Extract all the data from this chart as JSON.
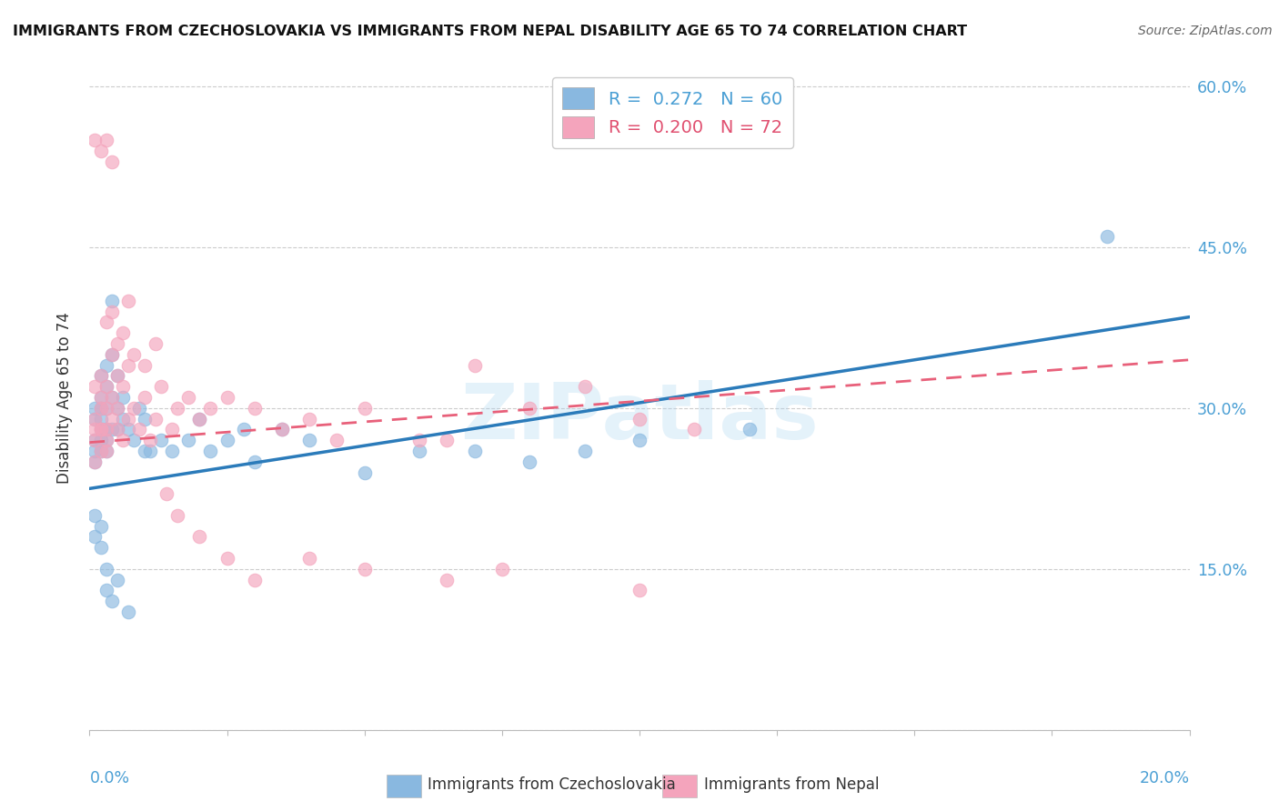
{
  "title": "IMMIGRANTS FROM CZECHOSLOVAKIA VS IMMIGRANTS FROM NEPAL DISABILITY AGE 65 TO 74 CORRELATION CHART",
  "source": "Source: ZipAtlas.com",
  "ylabel": "Disability Age 65 to 74",
  "legend_label1": "Immigrants from Czechoslovakia",
  "legend_label2": "Immigrants from Nepal",
  "R1": 0.272,
  "N1": 60,
  "R2": 0.2,
  "N2": 72,
  "xmin": 0.0,
  "xmax": 0.2,
  "ymin": 0.0,
  "ymax": 0.62,
  "yticks": [
    0.0,
    0.15,
    0.3,
    0.45,
    0.6
  ],
  "ytick_labels": [
    "",
    "15.0%",
    "30.0%",
    "45.0%",
    "60.0%"
  ],
  "color_blue": "#89b8e0",
  "color_pink": "#f4a4bc",
  "color_blue_line": "#2b7bba",
  "color_pink_line": "#e8607a",
  "background_color": "#ffffff",
  "watermark": "ZIPatlas",
  "scatter1_x": [
    0.001,
    0.001,
    0.001,
    0.001,
    0.001,
    0.002,
    0.002,
    0.002,
    0.002,
    0.002,
    0.002,
    0.002,
    0.003,
    0.003,
    0.003,
    0.003,
    0.003,
    0.003,
    0.004,
    0.004,
    0.004,
    0.004,
    0.005,
    0.005,
    0.005,
    0.006,
    0.006,
    0.007,
    0.008,
    0.009,
    0.01,
    0.01,
    0.011,
    0.013,
    0.015,
    0.018,
    0.02,
    0.022,
    0.025,
    0.028,
    0.03,
    0.035,
    0.04,
    0.05,
    0.06,
    0.07,
    0.08,
    0.09,
    0.1,
    0.12,
    0.001,
    0.001,
    0.002,
    0.002,
    0.003,
    0.003,
    0.004,
    0.005,
    0.007,
    0.185
  ],
  "scatter1_y": [
    0.29,
    0.27,
    0.3,
    0.26,
    0.25,
    0.28,
    0.3,
    0.26,
    0.31,
    0.33,
    0.27,
    0.29,
    0.28,
    0.32,
    0.3,
    0.27,
    0.34,
    0.26,
    0.28,
    0.31,
    0.35,
    0.4,
    0.28,
    0.3,
    0.33,
    0.31,
    0.29,
    0.28,
    0.27,
    0.3,
    0.26,
    0.29,
    0.26,
    0.27,
    0.26,
    0.27,
    0.29,
    0.26,
    0.27,
    0.28,
    0.25,
    0.28,
    0.27,
    0.24,
    0.26,
    0.26,
    0.25,
    0.26,
    0.27,
    0.28,
    0.2,
    0.18,
    0.17,
    0.19,
    0.15,
    0.13,
    0.12,
    0.14,
    0.11,
    0.46
  ],
  "scatter2_x": [
    0.001,
    0.001,
    0.001,
    0.001,
    0.001,
    0.002,
    0.002,
    0.002,
    0.002,
    0.002,
    0.002,
    0.003,
    0.003,
    0.003,
    0.003,
    0.003,
    0.004,
    0.004,
    0.004,
    0.005,
    0.005,
    0.005,
    0.006,
    0.006,
    0.007,
    0.007,
    0.008,
    0.009,
    0.01,
    0.011,
    0.012,
    0.013,
    0.015,
    0.016,
    0.018,
    0.02,
    0.022,
    0.025,
    0.03,
    0.035,
    0.04,
    0.045,
    0.05,
    0.06,
    0.065,
    0.07,
    0.08,
    0.09,
    0.1,
    0.11,
    0.001,
    0.002,
    0.003,
    0.004,
    0.005,
    0.006,
    0.007,
    0.008,
    0.01,
    0.012,
    0.014,
    0.016,
    0.02,
    0.025,
    0.03,
    0.04,
    0.05,
    0.065,
    0.075,
    0.1,
    0.003,
    0.004
  ],
  "scatter2_y": [
    0.29,
    0.27,
    0.32,
    0.25,
    0.28,
    0.3,
    0.28,
    0.26,
    0.31,
    0.28,
    0.33,
    0.27,
    0.3,
    0.28,
    0.32,
    0.26,
    0.29,
    0.31,
    0.35,
    0.28,
    0.3,
    0.33,
    0.27,
    0.32,
    0.29,
    0.34,
    0.3,
    0.28,
    0.31,
    0.27,
    0.29,
    0.32,
    0.28,
    0.3,
    0.31,
    0.29,
    0.3,
    0.31,
    0.3,
    0.28,
    0.29,
    0.27,
    0.3,
    0.27,
    0.27,
    0.34,
    0.3,
    0.32,
    0.29,
    0.28,
    0.55,
    0.54,
    0.38,
    0.39,
    0.36,
    0.37,
    0.4,
    0.35,
    0.34,
    0.36,
    0.22,
    0.2,
    0.18,
    0.16,
    0.14,
    0.16,
    0.15,
    0.14,
    0.15,
    0.13,
    0.55,
    0.53
  ],
  "line1_x0": 0.0,
  "line1_y0": 0.225,
  "line1_x1": 0.2,
  "line1_y1": 0.385,
  "line2_x0": 0.0,
  "line2_y0": 0.268,
  "line2_x1": 0.2,
  "line2_y1": 0.345
}
